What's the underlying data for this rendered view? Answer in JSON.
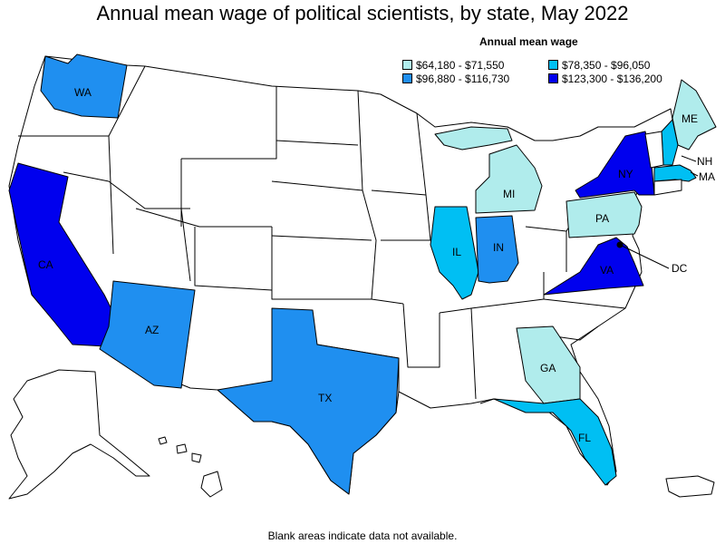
{
  "title": "Annual mean wage of political scientists, by state, May 2022",
  "legend": {
    "title": "Annual mean wage",
    "items": [
      {
        "label": "$64,180 - $71,550",
        "color": "#b0ecec"
      },
      {
        "label": "$78,350 - $96,050",
        "color": "#00bff3"
      },
      {
        "label": "$96,880 - $116,730",
        "color": "#1f8ff0"
      },
      {
        "label": "$123,300 - $136,200",
        "color": "#0000ee"
      }
    ]
  },
  "states": [
    {
      "abbr": "WA",
      "tier": 2
    },
    {
      "abbr": "CA",
      "tier": 3
    },
    {
      "abbr": "AZ",
      "tier": 2
    },
    {
      "abbr": "TX",
      "tier": 2
    },
    {
      "abbr": "IL",
      "tier": 1
    },
    {
      "abbr": "IN",
      "tier": 2
    },
    {
      "abbr": "MI",
      "tier": 0
    },
    {
      "abbr": "PA",
      "tier": 0
    },
    {
      "abbr": "NY",
      "tier": 3
    },
    {
      "abbr": "VA",
      "tier": 3
    },
    {
      "abbr": "GA",
      "tier": 0
    },
    {
      "abbr": "FL",
      "tier": 1
    },
    {
      "abbr": "ME",
      "tier": 0
    },
    {
      "abbr": "NH",
      "tier": 1
    },
    {
      "abbr": "MA",
      "tier": 1
    },
    {
      "abbr": "DC",
      "tier": 3
    }
  ],
  "footnote": "Blank areas indicate data not available."
}
